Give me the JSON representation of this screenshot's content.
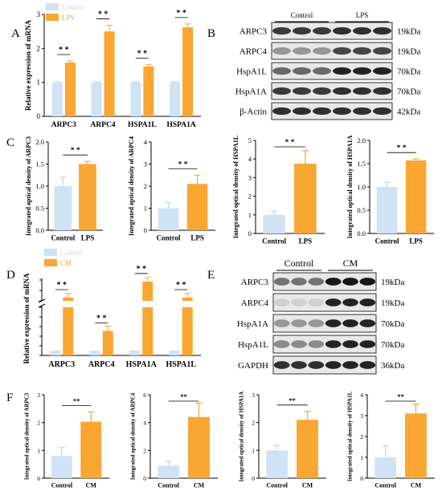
{
  "panels": {
    "A": "A",
    "B": "B",
    "C": "C",
    "D": "D",
    "E": "E",
    "F": "F"
  },
  "colors": {
    "control": "#CFE3F5",
    "treat": "#F9A632",
    "err": "#F9A632"
  },
  "blot_B": {
    "groups": [
      "Control",
      "LPS"
    ],
    "rows": [
      {
        "protein": "ARPC3",
        "kda": "19kDa"
      },
      {
        "protein": "ARPC4",
        "kda": "19kDa"
      },
      {
        "protein": "HspA1L",
        "kda": "70kDa"
      },
      {
        "protein": "HspA1A",
        "kda": "70kDa"
      },
      {
        "protein": "β-Actin",
        "kda": "42kDa"
      }
    ]
  },
  "blot_E": {
    "groups": [
      "Control",
      "CM"
    ],
    "rows": [
      {
        "protein": "ARPC3",
        "kda": "19kDa"
      },
      {
        "protein": "ARPC4",
        "kda": "19kDa"
      },
      {
        "protein": "HspA1A",
        "kda": "70kDa"
      },
      {
        "protein": "HspA1L",
        "kda": "70kDa"
      },
      {
        "protein": "GAPDH",
        "kda": "36kDa"
      }
    ]
  },
  "chart_data": [
    {
      "id": "A",
      "type": "bar",
      "ylabel": "Relative expression of mRNA",
      "categories": [
        "ARPC3",
        "ARPC4",
        "HSPA1L",
        "HSPA1A"
      ],
      "series": [
        {
          "name": "Control",
          "values": [
            1.0,
            1.0,
            1.0,
            1.0
          ],
          "err": [
            0.02,
            0.02,
            0.02,
            0.02
          ]
        },
        {
          "name": "LPS",
          "values": [
            1.58,
            2.5,
            1.47,
            2.62
          ],
          "err": [
            0.05,
            0.18,
            0.05,
            0.1
          ]
        }
      ],
      "sig": [
        "* *",
        "* *",
        "* *",
        "* *"
      ],
      "ylim": [
        0,
        3
      ],
      "legend": "top-left"
    },
    {
      "id": "C1",
      "type": "bar",
      "ylabel": "Integrated optical density of ARPC3",
      "categories": [
        "Control",
        "LPS"
      ],
      "values": [
        1.0,
        1.5
      ],
      "err": [
        0.2,
        0.06
      ],
      "sig": "* *",
      "yticks": [
        0.0,
        0.5,
        1.0,
        1.5,
        2.0
      ],
      "ylim": [
        0,
        2.0
      ]
    },
    {
      "id": "C2",
      "type": "bar",
      "ylabel": "Integrated optical density of ARPC4",
      "categories": [
        "Control",
        "LPS"
      ],
      "values": [
        1.0,
        2.1
      ],
      "err": [
        0.25,
        0.4
      ],
      "sig": "* *",
      "yticks": [
        0,
        1,
        2,
        3,
        4
      ],
      "ylim": [
        0,
        4
      ]
    },
    {
      "id": "C3",
      "type": "bar",
      "ylabel": "Integrated optical density of HSPA1L",
      "categories": [
        "Control",
        "LPS"
      ],
      "values": [
        1.0,
        3.75
      ],
      "err": [
        0.2,
        0.7
      ],
      "sig": "* *",
      "yticks": [
        0,
        1,
        2,
        3,
        4,
        5
      ],
      "ylim": [
        0,
        5
      ]
    },
    {
      "id": "C4",
      "type": "bar",
      "ylabel": "Integrated optical density of HSPA1A",
      "categories": [
        "Control",
        "LPS"
      ],
      "values": [
        1.0,
        1.57
      ],
      "err": [
        0.1,
        0.03
      ],
      "sig": "* *",
      "yticks": [
        0.0,
        0.5,
        1.0,
        1.5,
        2.0
      ],
      "ylim": [
        0,
        2.0
      ]
    },
    {
      "id": "D",
      "type": "bar",
      "ylabel": "Relative expression of mRNA",
      "categories": [
        "ARPC3",
        "ARPC4",
        "HSPA1A",
        "HSPA1L"
      ],
      "series": [
        {
          "name": "Control",
          "values": [
            1.0,
            1.0,
            1.0,
            1.0
          ]
        },
        {
          "name": "CM",
          "values": [
            10.5,
            5.1,
            57,
            13
          ]
        }
      ],
      "sig": [
        "* *",
        "* *",
        "* *",
        "* *"
      ],
      "axis_break": true,
      "legend": "top-left"
    },
    {
      "id": "F1",
      "type": "bar",
      "ylabel": "Integrated optical density of ARPC3",
      "categories": [
        "Control",
        "CM"
      ],
      "values": [
        0.8,
        2.03
      ],
      "err": [
        0.3,
        0.35
      ],
      "sig": "**",
      "yticks": [
        0,
        1,
        2,
        3
      ],
      "ylim": [
        0,
        3
      ]
    },
    {
      "id": "F2",
      "type": "bar",
      "ylabel": "Integrated optical density of ARPC4",
      "categories": [
        "Control",
        "CM"
      ],
      "values": [
        0.9,
        4.4
      ],
      "err": [
        0.3,
        1.0
      ],
      "sig": "**",
      "yticks": [
        0,
        2,
        4,
        6
      ],
      "ylim": [
        0,
        6
      ]
    },
    {
      "id": "F3",
      "type": "bar",
      "ylabel": "Integrated optical density of HSPA1A",
      "categories": [
        "Control",
        "CM"
      ],
      "values": [
        1.0,
        2.1
      ],
      "err": [
        0.18,
        0.3
      ],
      "sig": "**",
      "yticks": [
        0,
        1,
        2,
        3
      ],
      "ylim": [
        0,
        3
      ]
    },
    {
      "id": "F4",
      "type": "bar",
      "ylabel": "Integrated optical density of HSPA1L",
      "categories": [
        "Control",
        "CM"
      ],
      "values": [
        1.0,
        3.1
      ],
      "err": [
        0.55,
        0.45
      ],
      "sig": "**",
      "yticks": [
        0,
        1,
        2,
        3,
        4
      ],
      "ylim": [
        0,
        4
      ]
    }
  ]
}
